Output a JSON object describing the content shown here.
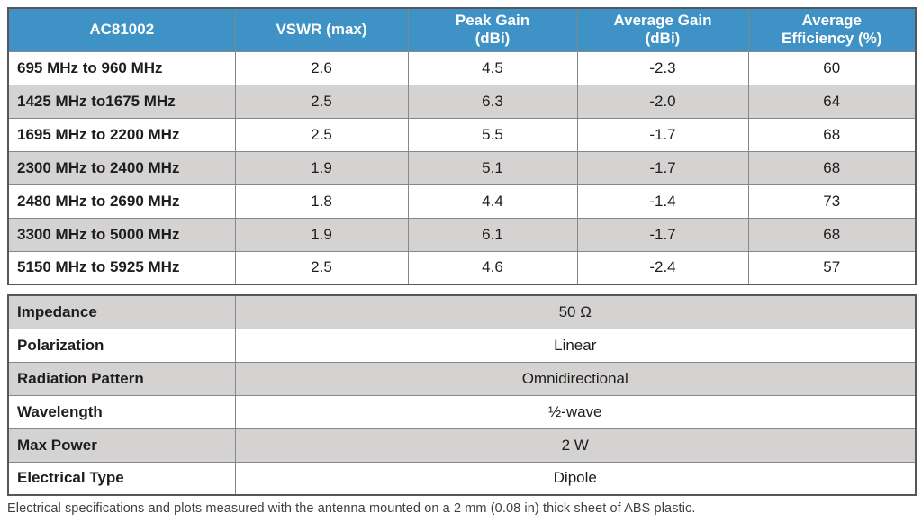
{
  "spec_table": {
    "product": "AC81002",
    "headers": [
      {
        "key": "band",
        "lines": [
          "AC81002"
        ]
      },
      {
        "key": "vswr",
        "lines": [
          "VSWR (max)"
        ]
      },
      {
        "key": "peak-gain",
        "lines": [
          "Peak Gain",
          "(dBi)"
        ]
      },
      {
        "key": "avg-gain",
        "lines": [
          "Average Gain",
          "(dBi)"
        ]
      },
      {
        "key": "avg-efficiency",
        "lines": [
          "Average",
          "Efficiency (%)"
        ]
      }
    ],
    "rows": [
      {
        "band": "695 MHz to 960 MHz",
        "vswr_max": "2.6",
        "peak_gain_dbi": "4.5",
        "avg_gain_dbi": "-2.3",
        "avg_efficiency_pct": "60"
      },
      {
        "band": "1425 MHz to1675 MHz",
        "vswr_max": "2.5",
        "peak_gain_dbi": "6.3",
        "avg_gain_dbi": "-2.0",
        "avg_efficiency_pct": "64"
      },
      {
        "band": "1695 MHz to 2200 MHz",
        "vswr_max": "2.5",
        "peak_gain_dbi": "5.5",
        "avg_gain_dbi": "-1.7",
        "avg_efficiency_pct": "68"
      },
      {
        "band": "2300 MHz to 2400 MHz",
        "vswr_max": "1.9",
        "peak_gain_dbi": "5.1",
        "avg_gain_dbi": "-1.7",
        "avg_efficiency_pct": "68"
      },
      {
        "band": "2480 MHz to 2690 MHz",
        "vswr_max": "1.8",
        "peak_gain_dbi": "4.4",
        "avg_gain_dbi": "-1.4",
        "avg_efficiency_pct": "73"
      },
      {
        "band": "3300 MHz to 5000 MHz",
        "vswr_max": "1.9",
        "peak_gain_dbi": "6.1",
        "avg_gain_dbi": "-1.7",
        "avg_efficiency_pct": "68"
      },
      {
        "band": "5150 MHz to 5925 MHz",
        "vswr_max": "2.5",
        "peak_gain_dbi": "4.6",
        "avg_gain_dbi": "-2.4",
        "avg_efficiency_pct": "57"
      }
    ]
  },
  "properties_table": {
    "rows": [
      {
        "label": "Impedance",
        "value": "50 Ω"
      },
      {
        "label": "Polarization",
        "value": "Linear"
      },
      {
        "label": "Radiation Pattern",
        "value": "Omnidirectional"
      },
      {
        "label": "Wavelength",
        "value": "½-wave"
      },
      {
        "label": "Max Power",
        "value": "2 W"
      },
      {
        "label": "Electrical Type",
        "value": "Dipole"
      }
    ]
  },
  "footnote": "Electrical specifications and plots measured with the antenna mounted on a 2 mm (0.08 in) thick sheet of ABS plastic.",
  "colors": {
    "header_bg": "#3E92C5",
    "header_text": "#FFFFFF",
    "row_alt_bg": "#D5D3D1",
    "row_bg": "#FFFFFF",
    "outer_border": "#55565A",
    "inner_border": "#85878A",
    "body_text": "#1D1D1F",
    "footnote_text": "#3F4042"
  }
}
